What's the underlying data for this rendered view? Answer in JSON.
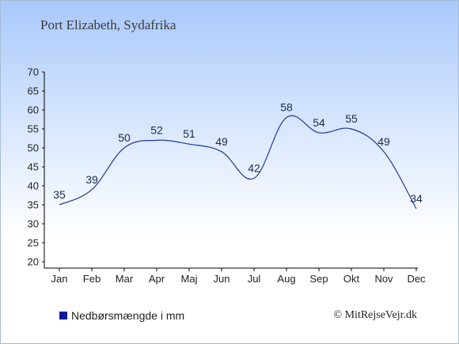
{
  "header": {
    "title": "Port Elizabeth, Sydafrika"
  },
  "legend": {
    "label": "Nedbørsmængde i mm",
    "swatch_color": "#0a1d9c"
  },
  "credit": "© MitRejseVejr.dk",
  "colors": {
    "line": "#1f3a9c",
    "axis": "#000000",
    "label": "#1a2a4a"
  },
  "chart_data": {
    "type": "line",
    "title": "",
    "xlabel": "",
    "ylabel": "",
    "categories": [
      "Jan",
      "Feb",
      "Mar",
      "Apr",
      "Maj",
      "Jun",
      "Jul",
      "Aug",
      "Sep",
      "Okt",
      "Nov",
      "Dec"
    ],
    "series": [
      {
        "name": "Nedbørsmængde i mm",
        "values": [
          35,
          39,
          50,
          52,
          51,
          49,
          42,
          58,
          54,
          55,
          49,
          34
        ]
      }
    ],
    "ylim": [
      20,
      70
    ],
    "yticks": [
      20,
      25,
      30,
      35,
      40,
      45,
      50,
      55,
      60,
      65,
      70
    ],
    "data_labels": true,
    "grid": false,
    "legend_position": "bottom-left"
  }
}
